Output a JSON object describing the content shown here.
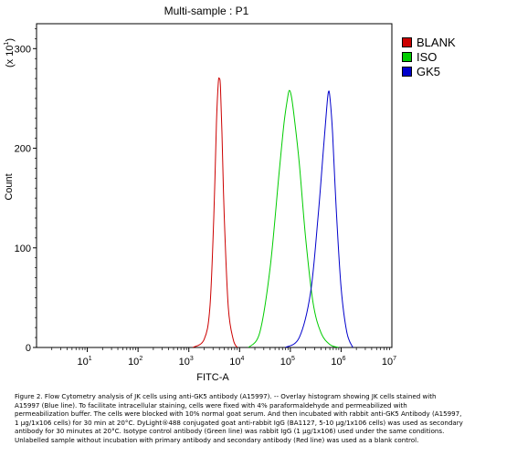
{
  "chart_data": {
    "type": "line",
    "title": "Multi-sample : P1",
    "xlabel": "FITC-A",
    "ylabel": "Count",
    "y_multiplier": "(x 10",
    "y_multiplier_exp": "1",
    "y_multiplier_close": ")",
    "x_scale": "log",
    "xlim": [
      1,
      10000000
    ],
    "ylim": [
      0,
      325
    ],
    "x_ticks": [
      {
        "base": "10",
        "exp": "1",
        "value": 10
      },
      {
        "base": "10",
        "exp": "2",
        "value": 100
      },
      {
        "base": "10",
        "exp": "3",
        "value": 1000
      },
      {
        "base": "10",
        "exp": "4",
        "value": 10000
      },
      {
        "base": "10",
        "exp": "5",
        "value": 100000
      },
      {
        "base": "10",
        "exp": "6",
        "value": 1000000
      },
      {
        "base": "10",
        "exp": "7",
        "value": 10000000
      }
    ],
    "y_ticks": [
      {
        "label": "0",
        "value": 0
      },
      {
        "label": "100",
        "value": 100
      },
      {
        "label": "200",
        "value": 200
      },
      {
        "label": "300",
        "value": 300
      }
    ],
    "legend_position": "right",
    "series": [
      {
        "name": "BLANK",
        "color": "#cc0000",
        "x": [
          1200,
          2000,
          2600,
          3100,
          3500,
          3800,
          4000,
          4200,
          4500,
          5000,
          6000,
          7500,
          9000
        ],
        "y": [
          0,
          8,
          40,
          130,
          225,
          265,
          270,
          262,
          215,
          130,
          40,
          8,
          0
        ]
      },
      {
        "name": "ISO",
        "color": "#00cc00",
        "x": [
          15000,
          25000,
          40000,
          60000,
          75000,
          88000,
          95000,
          105000,
          120000,
          150000,
          200000,
          280000,
          400000,
          600000,
          900000
        ],
        "y": [
          0,
          15,
          80,
          175,
          225,
          250,
          258,
          252,
          230,
          185,
          110,
          45,
          15,
          3,
          0
        ]
      },
      {
        "name": "GK5",
        "color": "#0000cc",
        "x": [
          80000,
          150000,
          250000,
          350000,
          450000,
          520000,
          560000,
          600000,
          680000,
          800000,
          1000000,
          1300000,
          1700000
        ],
        "y": [
          0,
          10,
          55,
          130,
          200,
          240,
          256,
          252,
          215,
          140,
          60,
          15,
          0
        ]
      }
    ]
  },
  "caption": {
    "lines": [
      "Figure 2. Flow Cytometry analysis of JK cells using anti-GK5 antibody (A15997).  -- Overlay histogram showing JK cells stained with",
      "A15997 (Blue line).  To facilitate intracellular staining, cells were fixed with 4% paraformaldehyde and permeabilized with",
      "permeabilization buffer. The cells were blocked with 10% normal goat serum.  And then incubated with rabbit anti-GK5 Antibody (A15997,",
      "1 µg/1x106 cells) for 30 min at 20°C. DyLight®488 conjugated goat anti-rabbit IgG (BA1127, 5-10 µg/1x106 cells) was used as secondary",
      "antibody for 30 minutes at 20°C. Isotype control antibody (Green line) was rabbit IgG (1 µg/1x106) used under the same conditions.",
      "Unlabelled sample without incubation with primary antibody and secondary antibody (Red line) was used as a blank control."
    ]
  }
}
